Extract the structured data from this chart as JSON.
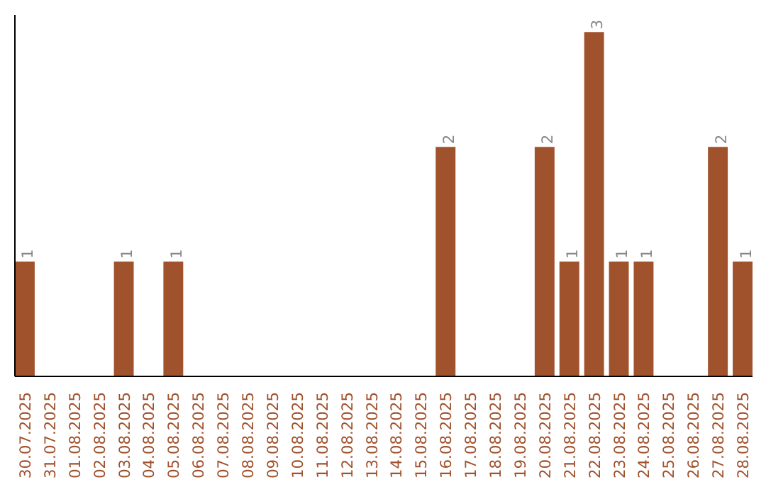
{
  "chart_data": {
    "type": "bar",
    "categories": [
      "30.07.2025",
      "31.07.2025",
      "01.08.2025",
      "02.08.2025",
      "03.08.2025",
      "04.08.2025",
      "05.08.2025",
      "06.08.2025",
      "07.08.2025",
      "08.08.2025",
      "09.08.2025",
      "10.08.2025",
      "11.08.2025",
      "12.08.2025",
      "13.08.2025",
      "14.08.2025",
      "15.08.2025",
      "16.08.2025",
      "17.08.2025",
      "18.08.2025",
      "19.08.2025",
      "20.08.2025",
      "21.08.2025",
      "22.08.2025",
      "23.08.2025",
      "24.08.2025",
      "25.08.2025",
      "26.08.2025",
      "27.08.2025",
      "28.08.2025"
    ],
    "values": [
      1,
      0,
      0,
      0,
      1,
      0,
      1,
      0,
      0,
      0,
      0,
      0,
      0,
      0,
      0,
      0,
      0,
      2,
      0,
      0,
      0,
      2,
      1,
      3,
      1,
      1,
      0,
      0,
      2,
      1
    ],
    "value_labels": [
      "1",
      null,
      null,
      null,
      "1",
      null,
      "1",
      null,
      null,
      null,
      null,
      null,
      null,
      null,
      null,
      null,
      null,
      "2",
      null,
      null,
      null,
      "2",
      "1",
      "3",
      "1",
      "1",
      null,
      null,
      "2",
      "1"
    ],
    "color": "#a0522d",
    "grid": false
  }
}
